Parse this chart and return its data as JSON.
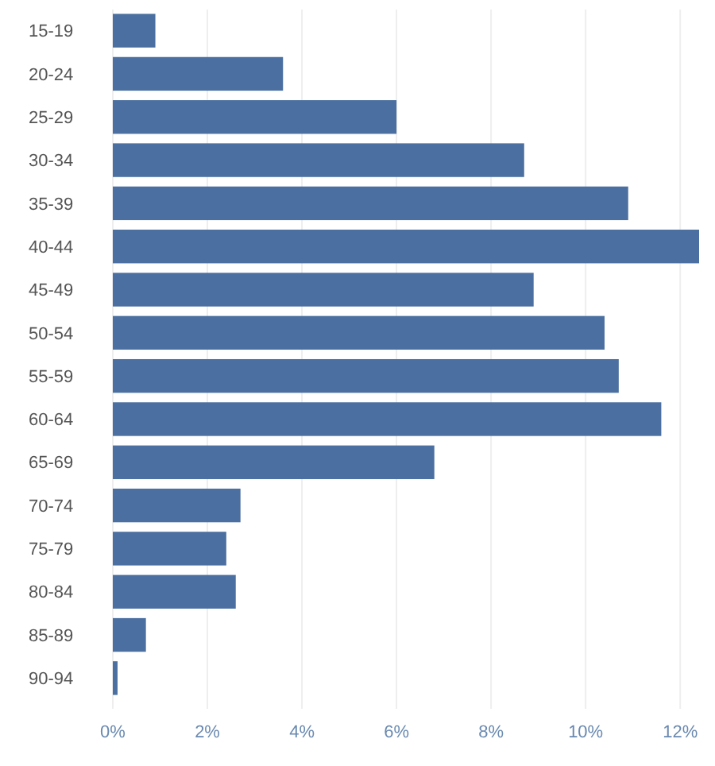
{
  "chart_data": {
    "type": "bar",
    "orientation": "horizontal",
    "categories": [
      "15-19",
      "20-24",
      "25-29",
      "30-34",
      "35-39",
      "40-44",
      "45-49",
      "50-54",
      "55-59",
      "60-64",
      "65-69",
      "70-74",
      "75-79",
      "80-84",
      "85-89",
      "90-94"
    ],
    "values": [
      0.9,
      3.6,
      6.0,
      8.7,
      10.9,
      12.4,
      8.9,
      10.4,
      10.7,
      11.6,
      6.8,
      2.7,
      2.4,
      2.6,
      0.7,
      0.1
    ],
    "color": "#4a6fa0",
    "xlim": [
      0,
      12.4
    ],
    "xticks": [
      {
        "value": 0,
        "label": "0%"
      },
      {
        "value": 2,
        "label": "2%"
      },
      {
        "value": 4,
        "label": "4%"
      },
      {
        "value": 6,
        "label": "6%"
      },
      {
        "value": 8,
        "label": "8%"
      },
      {
        "value": 10,
        "label": "10%"
      },
      {
        "value": 12,
        "label": "12%"
      }
    ],
    "grid": "x"
  }
}
